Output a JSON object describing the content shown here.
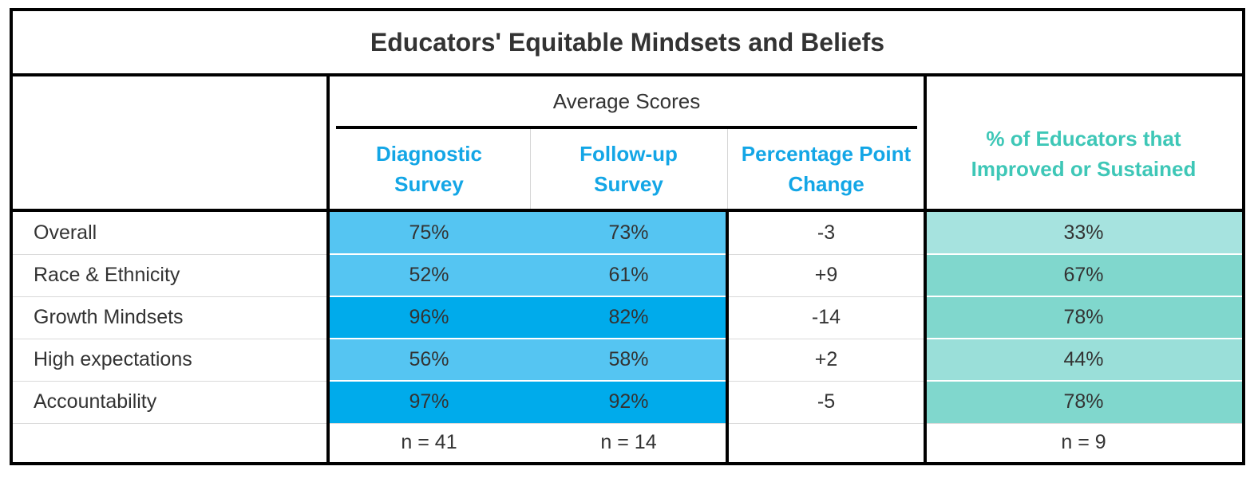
{
  "chart_data": {
    "type": "table",
    "title": "Educators' Equitable Mindsets and Beliefs",
    "group_header": "Average Scores",
    "columns": [
      "Diagnostic\nSurvey",
      "Follow-up\nSurvey",
      "Percentage Point\nChange",
      "% of Educators that\nImproved or Sustained"
    ],
    "column_lines": [
      [
        "Diagnostic",
        "Survey"
      ],
      [
        "Follow-up",
        "Survey"
      ],
      [
        "Percentage Point",
        "Change"
      ],
      [
        "% of Educators that",
        "Improved or Sustained"
      ]
    ],
    "rows": [
      {
        "label": "Overall",
        "diagnostic": "75%",
        "followup": "73%",
        "change": "-3",
        "improved": "33%"
      },
      {
        "label": "Race & Ethnicity",
        "diagnostic": "52%",
        "followup": "61%",
        "change": "+9",
        "improved": "67%"
      },
      {
        "label": "Growth Mindsets",
        "diagnostic": "96%",
        "followup": "82%",
        "change": "-14",
        "improved": "78%"
      },
      {
        "label": "High expectations",
        "diagnostic": "56%",
        "followup": "58%",
        "change": "+2",
        "improved": "44%"
      },
      {
        "label": "Accountability",
        "diagnostic": "97%",
        "followup": "92%",
        "change": "-5",
        "improved": "78%"
      }
    ],
    "values": {
      "diagnostic": [
        75,
        52,
        96,
        56,
        97
      ],
      "followup": [
        73,
        61,
        82,
        58,
        92
      ],
      "change": [
        -3,
        9,
        -14,
        2,
        -5
      ],
      "improved": [
        33,
        67,
        78,
        44,
        78
      ]
    },
    "sample_sizes": {
      "diagnostic": "n = 41",
      "followup": "n = 14",
      "improved": "n = 9"
    }
  },
  "colors": {
    "score_light": "#55c5f2",
    "score_dark": "#00abeb",
    "teal_light": "#a6e3df",
    "teal_mid": "#80d7cd",
    "header_blue": "#13a6e6",
    "header_teal": "#3ec7b7"
  }
}
